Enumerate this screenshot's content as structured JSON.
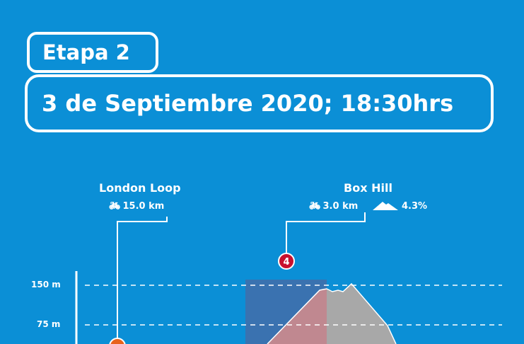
{
  "header": {
    "stage": "Etapa 2",
    "date": "3 de Septiembre 2020; 18:30hrs"
  },
  "points": [
    {
      "name": "London Loop",
      "distance": "15.0 km",
      "icon": "bicycle-icon",
      "marker_color": "#e8621c"
    },
    {
      "name": "Box Hill",
      "distance": "3.0 km",
      "gradient": "4.3%",
      "icon": "bicycle-icon",
      "gradient_icon": "mountain-icon",
      "marker": "4",
      "marker_color": "#c8102e"
    }
  ],
  "axis": {
    "labels": [
      "150 m",
      "75 m"
    ]
  },
  "colors": {
    "background": "#0b8fd6",
    "climb_fill": "#c08890",
    "profile_fill": "#a8a8a8",
    "climb_zone": "#3a72b0"
  }
}
